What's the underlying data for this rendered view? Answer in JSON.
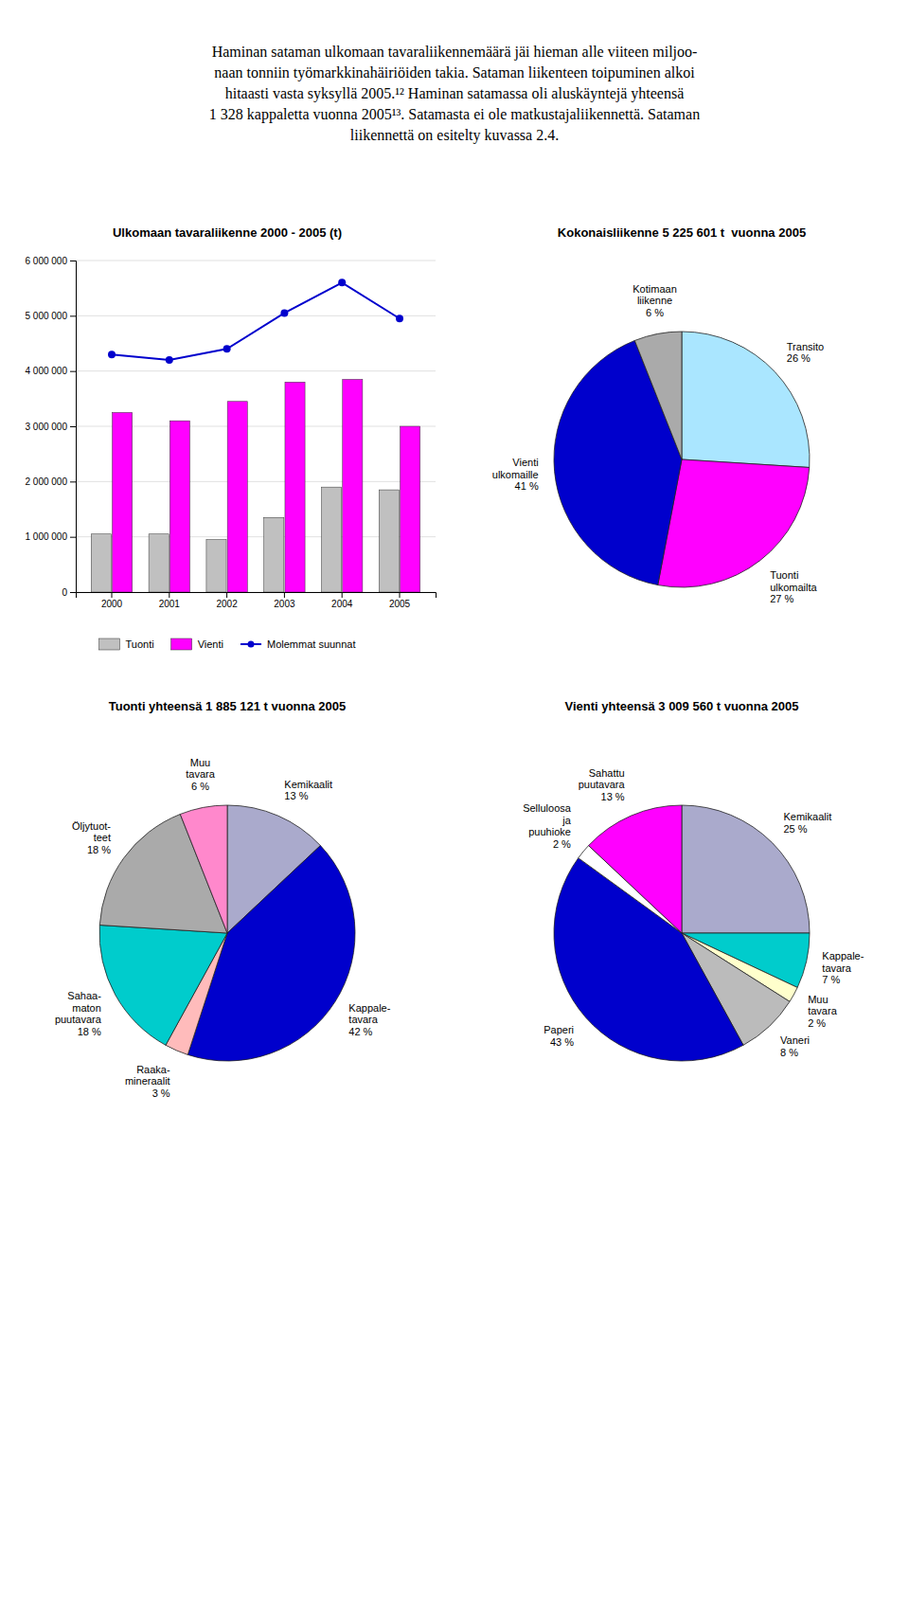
{
  "text": "Haminan sataman ulkomaan tavaraliikennemäärä jäi hieman alle viiteen miljoo-\nnaan tonniin työmarkkinahäiriöiden takia. Sataman liikenteen toipuminen alkoi\nhitaasti vasta syksyllä 2005.¹² Haminan satamassa oli aluskäyntejä yhteensä\n1 328 kappaletta vuonna 2005¹³. Satamasta ei ole matkustajaliikennettä. Sataman\nliikennettä on esitelty kuvassa 2.4.",
  "chart_data": [
    {
      "type": "bar",
      "title": "Ulkomaan tavaraliikenne 2000 - 2005 (t)",
      "categories": [
        "2000",
        "2001",
        "2002",
        "2003",
        "2004",
        "2005"
      ],
      "series": [
        {
          "name": "Tuonti",
          "color": "#c0c0c0",
          "values": [
            1050000,
            1050000,
            950000,
            1350000,
            1900000,
            1850000
          ]
        },
        {
          "name": "Vienti",
          "color": "#ff00ff",
          "values": [
            3250000,
            3100000,
            3450000,
            3800000,
            3850000,
            3000000
          ]
        },
        {
          "name": "Molemmat suunnat",
          "type": "line",
          "marker": "circle",
          "color": "#0000cd",
          "values": [
            4300000,
            4200000,
            4400000,
            5050000,
            5600000,
            4950000
          ]
        }
      ],
      "ylim": [
        0,
        6000000
      ],
      "yticks": [
        0,
        {
          "value": 1000000,
          "label": "1 000 000"
        },
        {
          "value": 2000000,
          "label": "2 000 000"
        },
        {
          "value": 3000000,
          "label": "3 000 000"
        },
        {
          "value": 4000000,
          "label": "4 000 000"
        },
        {
          "value": 5000000,
          "label": "5 000 000"
        },
        {
          "value": 6000000,
          "label": "6 000 000"
        }
      ],
      "grid": true,
      "legend": "bottom"
    },
    {
      "type": "pie",
      "title": "Kokonaisliikenne 5 225 601 t  vuonna 2005",
      "categories": [
        "Transito",
        "Tuonti\nulkomailta",
        "Vienti\nulkomaille",
        "Kotimaan\nliikenne"
      ],
      "values": [
        26,
        27,
        41,
        6
      ],
      "value_labels": [
        "26 %",
        "27 %",
        "41 %",
        "6 %"
      ],
      "colors": [
        "#aae6ff",
        "#ff00ff",
        "#0000cc",
        "#aaaaaa"
      ],
      "data_labels": true
    },
    {
      "type": "pie",
      "title": "Tuonti yhteensä 1 885 121 t vuonna 2005",
      "categories": [
        "Kemikaalit",
        "Kappale-\ntavara",
        "Raaka-\nmineraalit",
        "Sahaa-\nmaton\npuutavara",
        "Öljytuot-\nteet",
        "Muu\ntavara"
      ],
      "values": [
        13,
        42,
        3,
        18,
        18,
        6
      ],
      "value_labels": [
        "13 %",
        "42 %",
        "3 %",
        "18 %",
        "18 %",
        "6 %"
      ],
      "colors": [
        "#aaaacc",
        "#0000cc",
        "#ffbbbb",
        "#00cccc",
        "#aaaaaa",
        "#ff88cc"
      ],
      "data_labels": true
    },
    {
      "type": "pie",
      "title": "Vienti yhteensä 3 009 560 t vuonna 2005",
      "categories": [
        "Kemikaalit",
        "Kappale-\ntavara",
        "Muu\ntavara",
        "Vaneri",
        "Paperi",
        "Selluloosa\nja\npuuhioke",
        "Sahattu\npuutavara"
      ],
      "values": [
        25,
        7,
        2,
        8,
        43,
        2,
        13
      ],
      "value_labels": [
        "25 %",
        "7 %",
        "2 %",
        "8 %",
        "43 %",
        "2 %",
        "13 %"
      ],
      "colors": [
        "#aaaacc",
        "#00cccc",
        "#ffffcc",
        "#bbbbbb",
        "#0000cc",
        "#ffffff",
        "#ff00ff"
      ],
      "data_labels": true
    }
  ]
}
